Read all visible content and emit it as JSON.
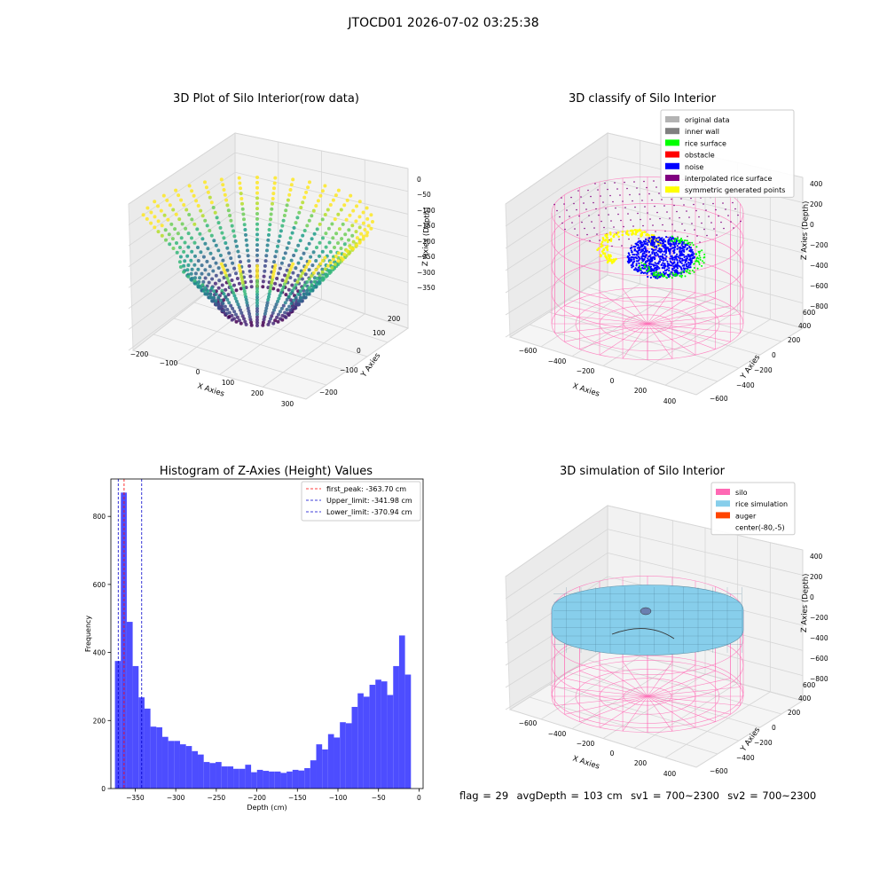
{
  "page_title": "JTOCD01 2026-07-02 03:25:38",
  "footer": {
    "flag": "flag = 29",
    "avg_depth": "avgDepth = 103 cm",
    "sv1": "sv1 = 700~2300",
    "sv2": "sv2 = 700~2300"
  },
  "colors": {
    "original": "#b3b3b3",
    "inner_wall": "#808080",
    "rice_surface": "#00ff00",
    "obstacle": "#ff0000",
    "noise": "#0000ff",
    "interpolated": "#800080",
    "symmetric": "#ffff00",
    "silo": "#ff69b4",
    "rice_sim": "#87ceeb",
    "auger": "#ff4500",
    "hist_bar": "#4d4dff"
  },
  "chart_data": [
    {
      "type": "scatter3d",
      "title": "3D Plot of Silo Interior(row data)",
      "xlabel": "X Axies",
      "ylabel": "Y Axies",
      "zlabel": "Z Axies (Depth)",
      "x_ticks": [
        "−200",
        "−100",
        "0",
        "100",
        "200",
        "300"
      ],
      "y_ticks": [
        "−200",
        "−100",
        "0",
        "100",
        "200"
      ],
      "z_ticks": [
        "0",
        "−50",
        "−100",
        "−150",
        "−200",
        "−250",
        "−300",
        "−350"
      ],
      "xlim": [
        -220,
        320
      ],
      "ylim": [
        -250,
        250
      ],
      "zlim": [
        -380,
        10
      ],
      "colormap": "viridis"
    },
    {
      "type": "scatter3d",
      "title": "3D classify of Silo Interior",
      "xlabel": "X Axies",
      "ylabel": "Y Axies",
      "zlabel": "Z Axies (Depth)",
      "x_ticks": [
        "−600",
        "−400",
        "−200",
        "0",
        "200",
        "400"
      ],
      "y_ticks": [
        "−600",
        "−400",
        "−200",
        "0",
        "200",
        "400",
        "600"
      ],
      "z_ticks": [
        "400",
        "200",
        "0",
        "−200",
        "−400",
        "−600",
        "−800"
      ],
      "legend": [
        {
          "label": "original data",
          "color_key": "original"
        },
        {
          "label": "inner wall",
          "color_key": "inner_wall"
        },
        {
          "label": "rice surface",
          "color_key": "rice_surface"
        },
        {
          "label": "obstacle",
          "color_key": "obstacle"
        },
        {
          "label": "noise",
          "color_key": "noise"
        },
        {
          "label": "interpolated rice surface",
          "color_key": "interpolated"
        },
        {
          "label": "symmetric generated points",
          "color_key": "symmetric"
        }
      ],
      "legend_position": "top-right"
    },
    {
      "type": "bar",
      "title": "Histogram of Z-Axies (Height) Values",
      "xlabel": "Depth (cm)",
      "ylabel": "Frequency",
      "x_ticks": [
        -350,
        -300,
        -250,
        -200,
        -150,
        -100,
        -50,
        0
      ],
      "x_tick_labels": [
        "−350",
        "−300",
        "−250",
        "−200",
        "−150",
        "−100",
        "−50",
        "0"
      ],
      "y_ticks": [
        0,
        200,
        400,
        600,
        800
      ],
      "xlim": [
        -380,
        5
      ],
      "ylim": [
        0,
        910
      ],
      "bin_start": -375,
      "bin_width": 7.3,
      "values": [
        375,
        870,
        490,
        360,
        268,
        235,
        182,
        180,
        152,
        140,
        140,
        130,
        125,
        110,
        100,
        78,
        75,
        78,
        65,
        65,
        58,
        58,
        70,
        48,
        55,
        52,
        50,
        50,
        46,
        50,
        55,
        53,
        60,
        83,
        130,
        115,
        160,
        150,
        195,
        192,
        240,
        280,
        270,
        305,
        320,
        315,
        275,
        360,
        450,
        335
      ],
      "vlines": [
        {
          "label": "first_peak: -363.70 cm",
          "x": -363.7,
          "color": "#ff0000"
        },
        {
          "label": "Upper_limit: -341.98 cm",
          "x": -341.98,
          "color": "#0000cc"
        },
        {
          "label": "Lower_limit: -370.94 cm",
          "x": -370.94,
          "color": "#0000cc"
        }
      ],
      "legend_position": "top-right"
    },
    {
      "type": "surface3d",
      "title": "3D simulation of Silo Interior",
      "xlabel": "X Axies",
      "ylabel": "Y Axies",
      "zlabel": "Z Axies (Depth)",
      "x_ticks": [
        "−600",
        "−400",
        "−200",
        "0",
        "200",
        "400"
      ],
      "y_ticks": [
        "−600",
        "−400",
        "−200",
        "0",
        "200",
        "400",
        "600"
      ],
      "z_ticks": [
        "400",
        "200",
        "0",
        "−200",
        "−400",
        "−600",
        "−800"
      ],
      "legend": [
        {
          "label": "silo",
          "color_key": "silo"
        },
        {
          "label": "rice simulation",
          "color_key": "rice_sim"
        },
        {
          "label": "auger",
          "color_key": "auger"
        },
        {
          "label": "center(-80,-5)",
          "color_key": null
        }
      ],
      "legend_position": "top-right"
    }
  ]
}
